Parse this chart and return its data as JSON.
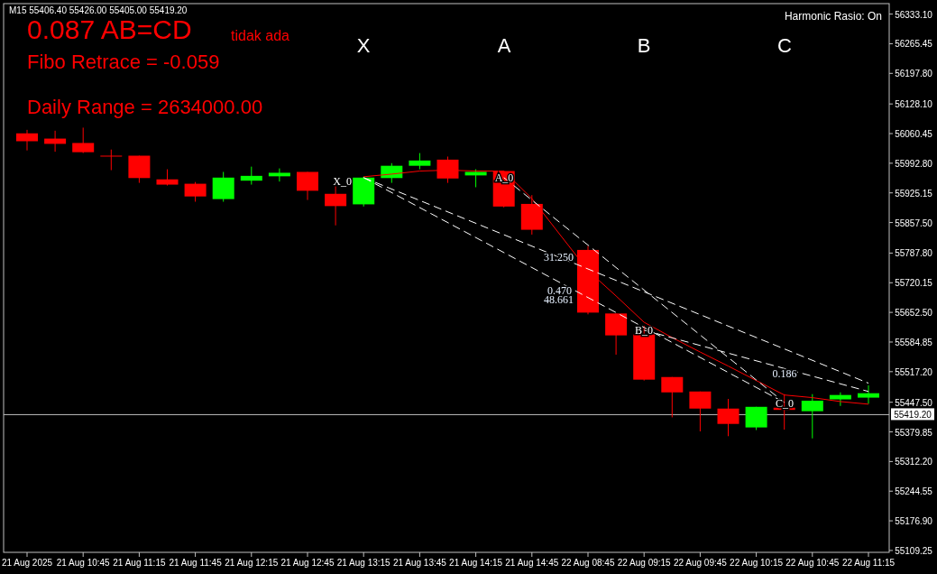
{
  "chart_data": {
    "type": "candlestick",
    "title": "M15  55406.40 55426.00 55405.00 55419.20",
    "categories": [
      "21 Aug 2025",
      null,
      "21 Aug 10:45",
      null,
      "21 Aug 11:15",
      null,
      "21 Aug 11:45",
      null,
      "21 Aug 12:15",
      null,
      "21 Aug 12:45",
      null,
      "21 Aug 13:15",
      null,
      "21 Aug 13:45",
      null,
      "21 Aug 14:15",
      null,
      "21 Aug 14:45",
      null,
      "22 Aug 08:45",
      null,
      "22 Aug 09:15",
      null,
      "22 Aug 09:45",
      null,
      "22 Aug 10:15",
      null,
      "22 Aug 10:45",
      null,
      "22 Aug 11:15"
    ],
    "ohlc": [
      [
        56061,
        56069,
        56022,
        56043
      ],
      [
        56049,
        56067,
        56019,
        56037
      ],
      [
        56039,
        56074,
        56016,
        56018
      ],
      [
        56009,
        56024,
        55977,
        56009
      ],
      [
        56010,
        56010,
        55948,
        55959
      ],
      [
        55956,
        55979,
        55942,
        55944
      ],
      [
        55946,
        55950,
        55905,
        55917
      ],
      [
        55911,
        55973,
        55905,
        55960
      ],
      [
        55953,
        55985,
        55944,
        55964
      ],
      [
        55963,
        55981,
        55951,
        55971
      ],
      [
        55973,
        55973,
        55909,
        55930
      ],
      [
        55923,
        55942,
        55851,
        55895
      ],
      [
        55899,
        55962,
        55894,
        55960
      ],
      [
        55959,
        55993,
        55948,
        55987
      ],
      [
        55987,
        56016,
        55979,
        55999
      ],
      [
        56001,
        56008,
        55948,
        55958
      ],
      [
        55965,
        55979,
        55938,
        55973
      ],
      [
        55975,
        55975,
        55892,
        55894
      ],
      [
        55900,
        55920,
        55830,
        55841
      ],
      null,
      [
        55795,
        55804,
        55648,
        55652
      ],
      [
        55650,
        55650,
        55556,
        55600
      ],
      [
        55602,
        55622,
        55497,
        55499
      ],
      [
        55505,
        55505,
        55413,
        55470
      ],
      [
        55472,
        55472,
        55381,
        55433
      ],
      [
        55433,
        55455,
        55370,
        55398
      ],
      [
        55390,
        55437,
        55384,
        55437
      ],
      [
        55435,
        55466,
        55385,
        55430
      ],
      [
        55427,
        55466,
        55365,
        55451
      ],
      [
        55454,
        55470,
        55439,
        55464
      ],
      [
        55458,
        55486,
        55444,
        55468
      ]
    ],
    "colors": [
      "#ff0000",
      "#ff0000",
      "#ff0000",
      "#ff0000",
      "#ff0000",
      "#ff0000",
      "#ff0000",
      "#00ff00",
      "#00ff00",
      "#00ff00",
      "#ff0000",
      "#ff0000",
      "#00ff00",
      "#00ff00",
      "#00ff00",
      "#ff0000",
      "#00ff00",
      "#ff0000",
      "#ff0000",
      null,
      "#ff0000",
      "#ff0000",
      "#ff0000",
      "#ff0000",
      "#ff0000",
      "#ff0000",
      "#00ff00",
      "#ff0000",
      "#00ff00",
      "#00ff00",
      "#00ff00"
    ],
    "series": [
      {
        "type": "line",
        "color": "#ff0000",
        "values": [
          null,
          null,
          null,
          null,
          null,
          null,
          null,
          null,
          null,
          null,
          null,
          null,
          55962,
          55968,
          55975,
          55977,
          55975,
          55975,
          55912,
          55830,
          55748,
          55690,
          55630,
          55595,
          55562,
          55530,
          55497,
          55464,
          55458,
          55449,
          55443
        ],
        "marker": "none"
      },
      {
        "type": "line",
        "color": "#ffffff",
        "line_style": "dashed",
        "values": [
          null,
          null,
          null,
          null,
          null,
          null,
          null,
          null,
          null,
          null,
          null,
          null,
          55960,
          null,
          null,
          null,
          null,
          null,
          null,
          null,
          null,
          null,
          null,
          null,
          null,
          null,
          null,
          55447,
          null,
          null,
          null
        ]
      },
      {
        "type": "line",
        "color": "#ffffff",
        "line_style": "dashed",
        "values": [
          null,
          null,
          null,
          null,
          null,
          null,
          null,
          null,
          null,
          null,
          null,
          null,
          55960,
          null,
          null,
          null,
          null,
          null,
          null,
          null,
          null,
          null,
          null,
          null,
          null,
          null,
          null,
          null,
          null,
          null,
          55491
        ]
      },
      {
        "type": "line",
        "color": "#ffffff",
        "line_style": "dashed",
        "values": [
          null,
          null,
          null,
          null,
          null,
          null,
          null,
          null,
          null,
          null,
          null,
          null,
          null,
          null,
          null,
          null,
          null,
          55960,
          null,
          null,
          null,
          null,
          null,
          null,
          null,
          null,
          null,
          55447,
          null,
          null,
          null
        ]
      },
      {
        "type": "line",
        "color": "#ffffff",
        "line_style": "dashed",
        "values": [
          null,
          null,
          null,
          null,
          null,
          null,
          null,
          null,
          null,
          null,
          null,
          null,
          null,
          null,
          null,
          null,
          null,
          null,
          null,
          null,
          null,
          null,
          55612,
          null,
          null,
          null,
          null,
          null,
          null,
          null,
          55472
        ]
      }
    ],
    "ylim": [
      55105,
      56357
    ],
    "yticks": [
      {
        "value": 56333.1,
        "label": "56333.10"
      },
      {
        "value": 56265.45,
        "label": "56265.45"
      },
      {
        "value": 56197.8,
        "label": "56197.80"
      },
      {
        "value": 56128.1,
        "label": "56128.10"
      },
      {
        "value": 56060.45,
        "label": "56060.45"
      },
      {
        "value": 55992.8,
        "label": "55992.80"
      },
      {
        "value": 55925.15,
        "label": "55925.15"
      },
      {
        "value": 55857.5,
        "label": "55857.50"
      },
      {
        "value": 55787.8,
        "label": "55787.80"
      },
      {
        "value": 55720.15,
        "label": "55720.15"
      },
      {
        "value": 55652.5,
        "label": "55652.50"
      },
      {
        "value": 55584.85,
        "label": "55584.85"
      },
      {
        "value": 55517.2,
        "label": "55517.20"
      },
      {
        "value": 55447.5,
        "label": "55447.50"
      },
      {
        "value": 55379.85,
        "label": "55379.85"
      },
      {
        "value": 55312.2,
        "label": "55312.20"
      },
      {
        "value": 55244.55,
        "label": "55244.55"
      },
      {
        "value": 55176.9,
        "label": "55176.90"
      },
      {
        "value": 55109.25,
        "label": "55109.25"
      }
    ],
    "ref_lines": [
      {
        "axis": "y",
        "value": 55419.2,
        "label": "55419.20",
        "color": "#c0c0c0"
      }
    ],
    "annotations": [
      "0.087 AB=CD",
      "tidak ada",
      "Fibo Retrace = -0.059",
      "Daily Range = 2634000.00",
      "Harmonic Rasio: On",
      "X",
      "A",
      "B",
      "C",
      "X_0",
      "A_0",
      "B_0",
      "C_0",
      "31.250",
      "0.470",
      "48.661",
      "0.186"
    ]
  }
}
